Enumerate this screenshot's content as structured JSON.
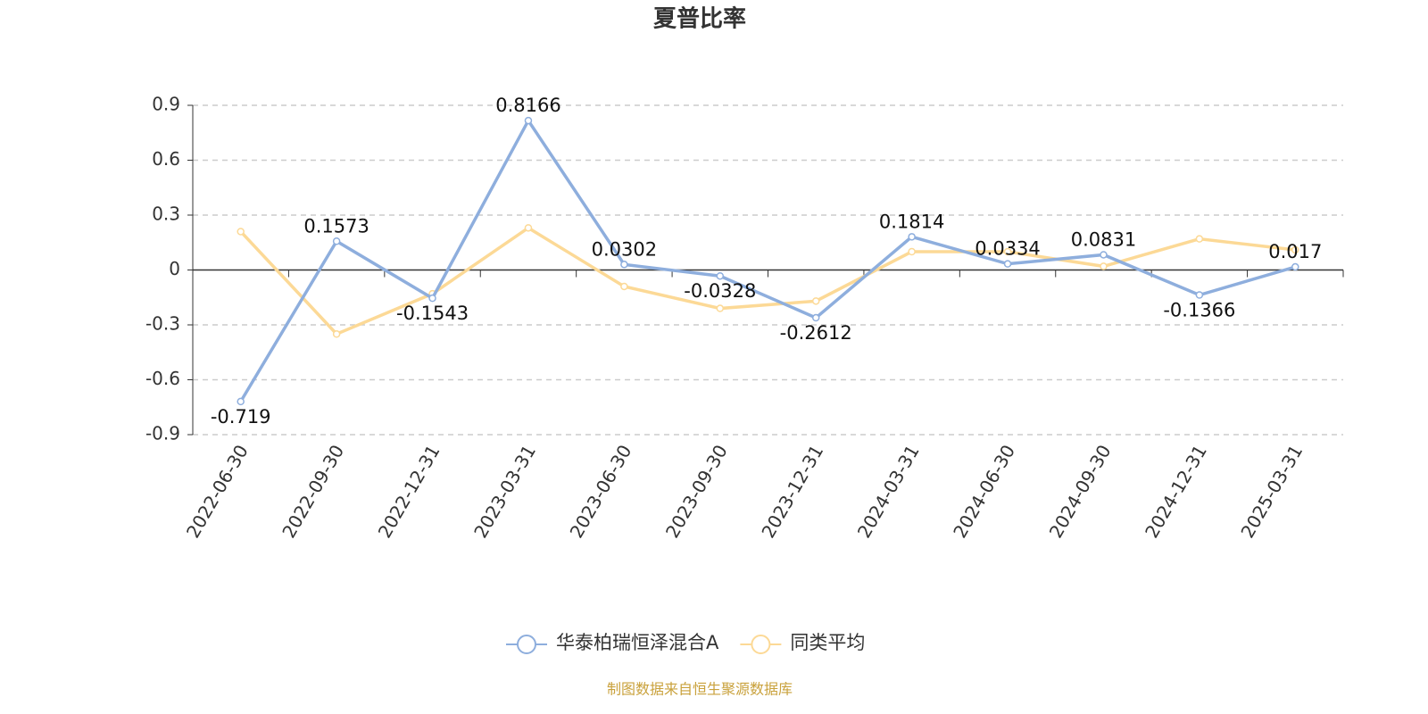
{
  "chart_data": {
    "type": "line",
    "title": "夏普比率",
    "categories": [
      "2022-06-30",
      "2022-09-30",
      "2022-12-31",
      "2023-03-31",
      "2023-06-30",
      "2023-09-30",
      "2023-12-31",
      "2024-03-31",
      "2024-06-30",
      "2024-09-30",
      "2024-12-31",
      "2025-03-31"
    ],
    "series": [
      {
        "name": "华泰柏瑞恒泽混合A",
        "color": "#8eaedd",
        "values": [
          -0.719,
          0.1573,
          -0.1543,
          0.8166,
          0.0302,
          -0.0328,
          -0.2612,
          0.1814,
          0.0334,
          0.0831,
          -0.1366,
          0.017
        ]
      },
      {
        "name": "同类平均",
        "color": "#fcd996",
        "values": [
          0.21,
          -0.35,
          -0.13,
          0.23,
          -0.09,
          -0.21,
          -0.17,
          0.1,
          0.1,
          0.02,
          0.17,
          0.11
        ]
      }
    ],
    "ylim": [
      -0.9,
      0.9
    ],
    "yticks": [
      -0.9,
      -0.6,
      -0.3,
      0,
      0.3,
      0.6,
      0.9
    ],
    "grid": true,
    "legend": "bottom",
    "source": "制图数据来自恒生聚源数据库"
  }
}
